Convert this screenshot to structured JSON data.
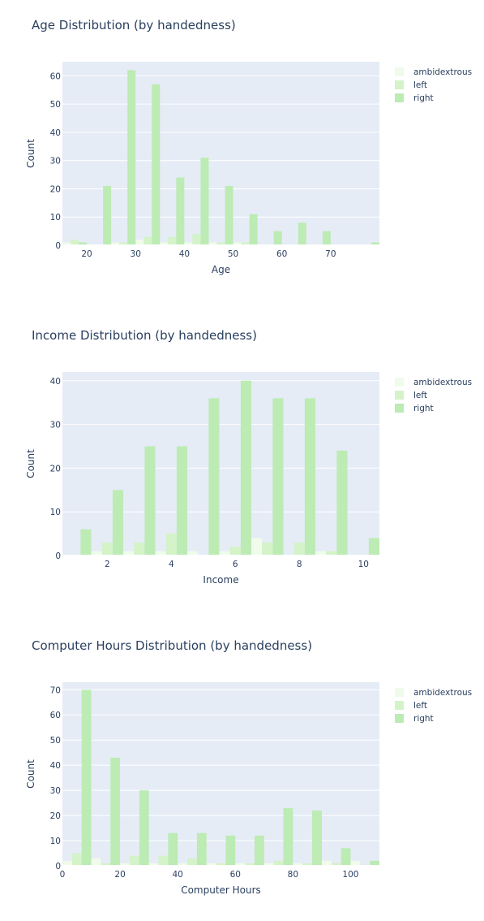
{
  "colors": {
    "ambidextrous": "#f0fbeb",
    "left": "#d4f3c9",
    "right": "#bcebb4",
    "plot_bg": "#e5ecf6",
    "grid": "#ffffff",
    "text": "#2a3f5f"
  },
  "chart_data": [
    {
      "type": "bar",
      "title": "Age Distribution (by handedness)",
      "xlabel": "Age",
      "ylabel": "Count",
      "xlim": [
        15,
        80
      ],
      "ylim": [
        0,
        65
      ],
      "xticks": [
        20,
        30,
        40,
        50,
        60,
        70
      ],
      "yticks": [
        0,
        10,
        20,
        30,
        40,
        50,
        60
      ],
      "bin_size": 5,
      "grid": true,
      "legend_position": "top-right",
      "x": [
        17.5,
        22.5,
        27.5,
        32.5,
        37.5,
        42.5,
        47.5,
        52.5,
        57.5,
        62.5,
        67.5,
        72.5,
        77.5
      ],
      "series": [
        {
          "name": "ambidextrous",
          "values": [
            1,
            0,
            1,
            2,
            1,
            1,
            1,
            1,
            0,
            0,
            0,
            0,
            0
          ]
        },
        {
          "name": "left",
          "values": [
            2,
            0,
            1,
            3,
            3,
            4,
            1,
            1,
            0,
            0,
            0,
            0,
            0
          ]
        },
        {
          "name": "right",
          "values": [
            1,
            21,
            62,
            57,
            24,
            31,
            21,
            11,
            5,
            8,
            5,
            0,
            1
          ]
        }
      ]
    },
    {
      "type": "bar",
      "title": "Income Distribution (by handedness)",
      "xlabel": "Income",
      "ylabel": "Count",
      "xlim": [
        0.6,
        10.5
      ],
      "ylim": [
        0,
        42
      ],
      "xticks": [
        2,
        4,
        6,
        8,
        10
      ],
      "yticks": [
        0,
        10,
        20,
        30,
        40
      ],
      "bin_size": 1,
      "grid": true,
      "legend_position": "top-right",
      "x": [
        1,
        2,
        3,
        4,
        5,
        6,
        7,
        8,
        9,
        10
      ],
      "series": [
        {
          "name": "ambidextrous",
          "values": [
            0,
            1,
            1,
            1,
            1,
            1,
            4,
            0,
            1,
            0
          ]
        },
        {
          "name": "left",
          "values": [
            0,
            3,
            3,
            5,
            0,
            2,
            3,
            3,
            1,
            0
          ]
        },
        {
          "name": "right",
          "values": [
            6,
            15,
            25,
            25,
            36,
            40,
            36,
            36,
            24,
            4
          ]
        }
      ]
    },
    {
      "type": "bar",
      "title": "Computer Hours Distribution (by handedness)",
      "xlabel": "Computer Hours",
      "ylabel": "Count",
      "xlim": [
        0,
        110
      ],
      "ylim": [
        0,
        73
      ],
      "xticks": [
        0,
        20,
        40,
        60,
        80,
        100
      ],
      "yticks": [
        0,
        10,
        20,
        30,
        40,
        50,
        60,
        70
      ],
      "bin_size": 10,
      "grid": true,
      "legend_position": "top-right",
      "x": [
        5,
        15,
        25,
        35,
        45,
        55,
        65,
        75,
        85,
        95,
        105
      ],
      "series": [
        {
          "name": "ambidextrous",
          "values": [
            2,
            3,
            1,
            1,
            1,
            1,
            1,
            1,
            1,
            2,
            2
          ]
        },
        {
          "name": "left",
          "values": [
            5,
            1,
            4,
            4,
            3,
            1,
            1,
            2,
            1,
            1,
            0
          ]
        },
        {
          "name": "right",
          "values": [
            70,
            43,
            30,
            13,
            13,
            12,
            12,
            23,
            22,
            7,
            2
          ]
        }
      ]
    }
  ]
}
